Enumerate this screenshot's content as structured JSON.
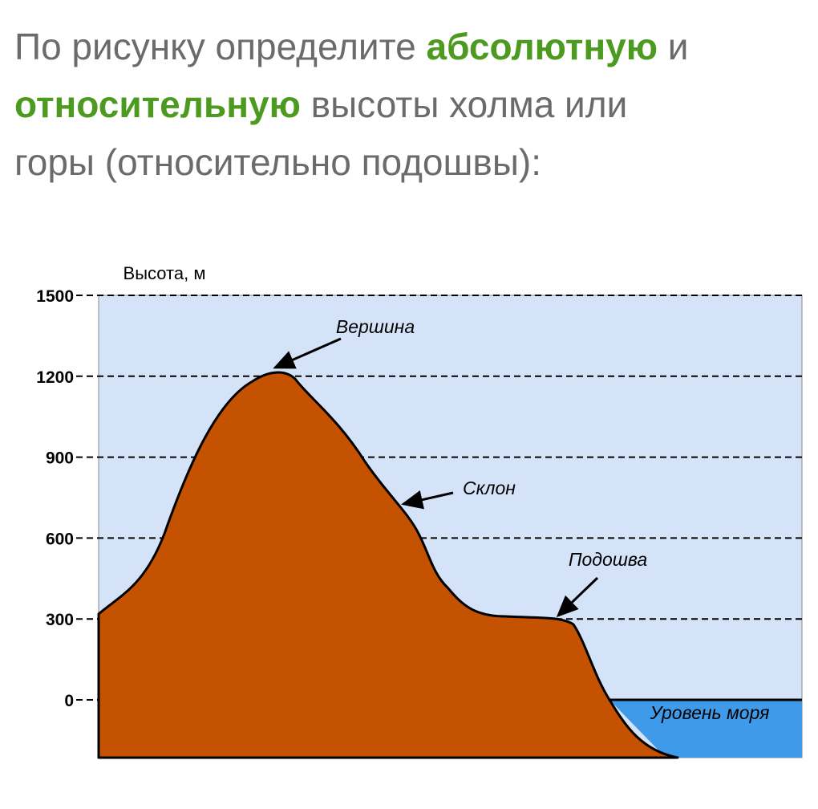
{
  "header": {
    "title_parts": [
      "По рисунку определите ",
      "абсолютную",
      " и",
      "относительную",
      " высоты холма или",
      "горы (относительно подошвы):"
    ]
  },
  "diagram": {
    "axis_label": "Высота, м",
    "yticks": [
      0,
      300,
      600,
      900,
      1200,
      1500
    ],
    "labels": {
      "peak": "Вершина",
      "slope": "Склон",
      "foot": "Подошва",
      "sea": "Уровень моря"
    }
  }
}
